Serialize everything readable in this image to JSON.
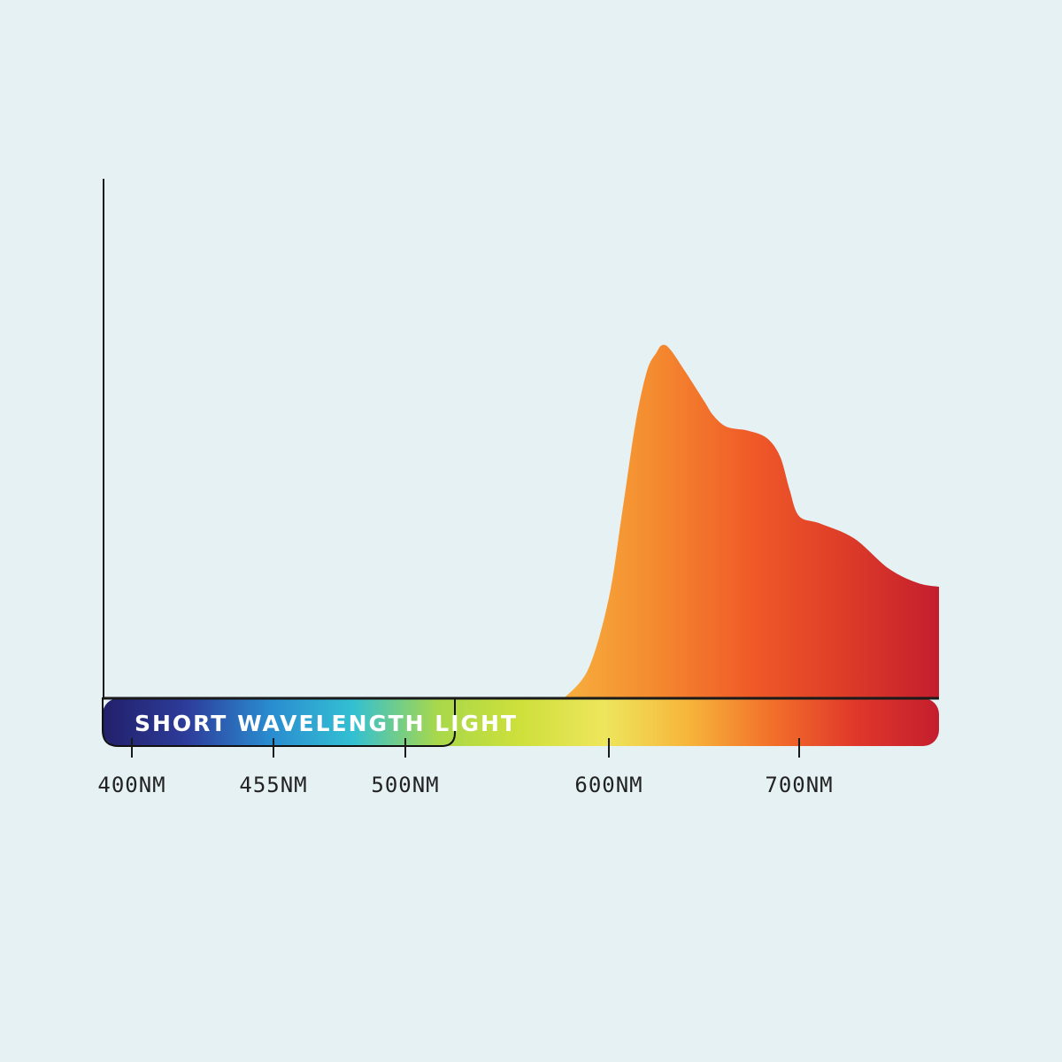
{
  "chart_data": {
    "type": "area",
    "title": "",
    "xlabel": "",
    "ylabel": "",
    "x_axis": {
      "ticks": [
        {
          "value": 400,
          "label": "400NM"
        },
        {
          "value": 455,
          "label": "455NM"
        },
        {
          "value": 500,
          "label": "500NM"
        },
        {
          "value": 600,
          "label": "600NM"
        },
        {
          "value": 700,
          "label": "700NM"
        }
      ],
      "range": [
        385,
        775
      ]
    },
    "y_axis": {
      "range": [
        0,
        1
      ],
      "tick_labels_shown": false
    },
    "grid": false,
    "band_label": "SHORT WAVELENGTH LIGHT",
    "band_range_nm": [
      385,
      520
    ],
    "series": [
      {
        "values": [
          {
            "x": 578,
            "y": 0.0
          },
          {
            "x": 590,
            "y": 0.08
          },
          {
            "x": 600,
            "y": 0.27
          },
          {
            "x": 607,
            "y": 0.5
          },
          {
            "x": 614,
            "y": 0.74
          },
          {
            "x": 620,
            "y": 0.88
          },
          {
            "x": 625,
            "y": 0.93
          },
          {
            "x": 628,
            "y": 0.95
          },
          {
            "x": 632,
            "y": 0.94
          },
          {
            "x": 640,
            "y": 0.88
          },
          {
            "x": 650,
            "y": 0.8
          },
          {
            "x": 655,
            "y": 0.76
          },
          {
            "x": 662,
            "y": 0.73
          },
          {
            "x": 673,
            "y": 0.72
          },
          {
            "x": 683,
            "y": 0.7
          },
          {
            "x": 690,
            "y": 0.65
          },
          {
            "x": 695,
            "y": 0.56
          },
          {
            "x": 700,
            "y": 0.49
          },
          {
            "x": 705,
            "y": 0.47
          },
          {
            "x": 713,
            "y": 0.43
          },
          {
            "x": 721,
            "y": 0.35
          },
          {
            "x": 728,
            "y": 0.31
          },
          {
            "x": 733,
            "y": 0.3
          }
        ]
      }
    ]
  },
  "colors": {
    "background": "#e6f1f4",
    "axis": "#1a1a1a",
    "curve_gradient": [
      "#f7ae3d",
      "#f4892f",
      "#f05a28",
      "#dd3c28",
      "#c41e2e"
    ],
    "band_gradient": [
      "#22206a",
      "#2d3c9a",
      "#2a8cd0",
      "#33c0d2",
      "#a8d84a",
      "#cee03b",
      "#eee65c",
      "#f7b53b",
      "#f2702a",
      "#e0382a",
      "#c41e2e"
    ]
  }
}
